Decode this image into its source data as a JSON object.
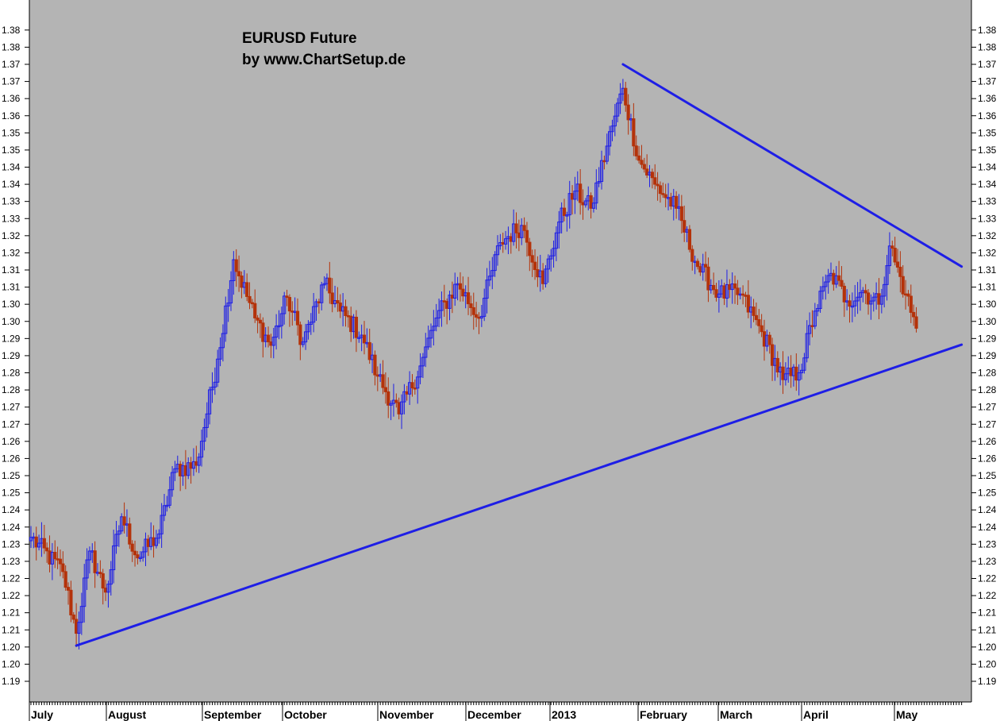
{
  "chart_data": {
    "type": "candlestick",
    "title": "EURUSD Future",
    "subtitle": "by www.ChartSetup.de",
    "ylim": [
      1.19,
      1.385
    ],
    "yticks": [
      "1.19",
      "1.20",
      "1.20",
      "1.21",
      "1.21",
      "1.22",
      "1.22",
      "1.23",
      "1.23",
      "1.24",
      "1.24",
      "1.25",
      "1.25",
      "1.26",
      "1.26",
      "1.27",
      "1.27",
      "1.28",
      "1.28",
      "1.29",
      "1.29",
      "1.30",
      "1.30",
      "1.31",
      "1.31",
      "1.32",
      "1.32",
      "1.33",
      "1.33",
      "1.34",
      "1.34",
      "1.35",
      "1.35",
      "1.36",
      "1.36",
      "1.37",
      "1.37",
      "1.38",
      "1.38"
    ],
    "months": [
      "July",
      "August",
      "September",
      "October",
      "November",
      "December",
      "2013",
      "February",
      "March",
      "April",
      "May"
    ],
    "colors": {
      "background": "#b4b4b4",
      "up": "#1e1ee6",
      "down": "#b4320a",
      "trendline": "#1e1ee6"
    },
    "anchors": [
      {
        "bar": 0,
        "value": 1.232
      },
      {
        "bar": 12,
        "value": 1.222
      },
      {
        "bar": 17,
        "value": 1.204
      },
      {
        "bar": 22,
        "value": 1.228
      },
      {
        "bar": 28,
        "value": 1.216
      },
      {
        "bar": 34,
        "value": 1.238
      },
      {
        "bar": 40,
        "value": 1.226
      },
      {
        "bar": 48,
        "value": 1.233
      },
      {
        "bar": 54,
        "value": 1.252
      },
      {
        "bar": 62,
        "value": 1.253
      },
      {
        "bar": 70,
        "value": 1.284
      },
      {
        "bar": 76,
        "value": 1.313
      },
      {
        "bar": 84,
        "value": 1.296
      },
      {
        "bar": 90,
        "value": 1.288
      },
      {
        "bar": 96,
        "value": 1.302
      },
      {
        "bar": 102,
        "value": 1.289
      },
      {
        "bar": 110,
        "value": 1.306
      },
      {
        "bar": 116,
        "value": 1.298
      },
      {
        "bar": 124,
        "value": 1.291
      },
      {
        "bar": 130,
        "value": 1.279
      },
      {
        "bar": 138,
        "value": 1.268
      },
      {
        "bar": 146,
        "value": 1.282
      },
      {
        "bar": 152,
        "value": 1.296
      },
      {
        "bar": 160,
        "value": 1.306
      },
      {
        "bar": 168,
        "value": 1.296
      },
      {
        "bar": 176,
        "value": 1.318
      },
      {
        "bar": 184,
        "value": 1.323
      },
      {
        "bar": 192,
        "value": 1.306
      },
      {
        "bar": 198,
        "value": 1.324
      },
      {
        "bar": 204,
        "value": 1.333
      },
      {
        "bar": 210,
        "value": 1.328
      },
      {
        "bar": 218,
        "value": 1.352
      },
      {
        "bar": 222,
        "value": 1.363
      },
      {
        "bar": 228,
        "value": 1.342
      },
      {
        "bar": 234,
        "value": 1.335
      },
      {
        "bar": 242,
        "value": 1.328
      },
      {
        "bar": 250,
        "value": 1.311
      },
      {
        "bar": 258,
        "value": 1.303
      },
      {
        "bar": 266,
        "value": 1.303
      },
      {
        "bar": 274,
        "value": 1.292
      },
      {
        "bar": 282,
        "value": 1.278
      },
      {
        "bar": 288,
        "value": 1.28
      },
      {
        "bar": 294,
        "value": 1.298
      },
      {
        "bar": 300,
        "value": 1.309
      },
      {
        "bar": 306,
        "value": 1.301
      },
      {
        "bar": 312,
        "value": 1.304
      },
      {
        "bar": 318,
        "value": 1.3
      },
      {
        "bar": 322,
        "value": 1.317
      },
      {
        "bar": 328,
        "value": 1.303
      },
      {
        "bar": 332,
        "value": 1.293
      }
    ],
    "trendlines": [
      {
        "name": "upper-resistance",
        "from": {
          "bar": 222,
          "value": 1.37
        },
        "to": {
          "bar": 349,
          "value": 1.311
        }
      },
      {
        "name": "lower-support",
        "from": {
          "bar": 17,
          "value": 1.2004
        },
        "to": {
          "bar": 349,
          "value": 1.2882
        }
      }
    ]
  }
}
